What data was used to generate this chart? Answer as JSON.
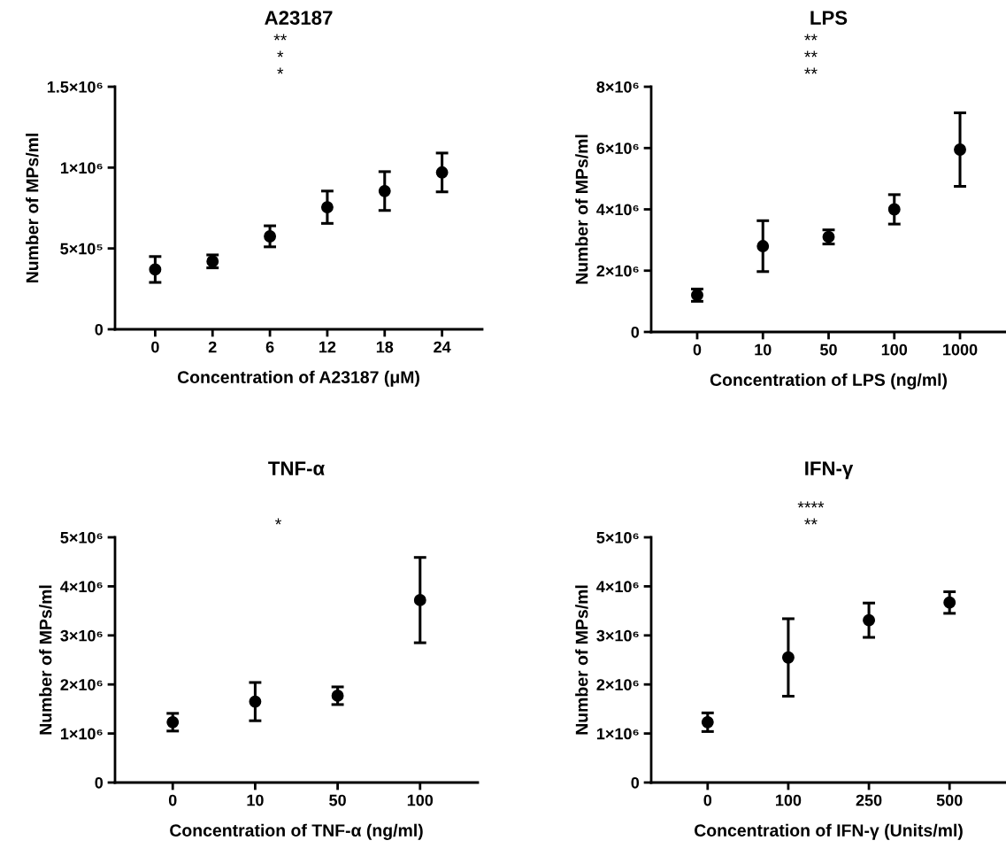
{
  "chart_data": [
    {
      "type": "scatter",
      "title": "A23187",
      "xlabel": "Concentration of A23187 (μM)",
      "ylabel": "Number of MPs/ml",
      "categories": [
        "0",
        "2",
        "6",
        "12",
        "18",
        "24"
      ],
      "series": [
        {
          "color": "#000000",
          "values": [
            370000,
            420000,
            575000,
            755000,
            855000,
            970000
          ],
          "errors": [
            80000,
            40000,
            65000,
            100000,
            120000,
            120000
          ]
        }
      ],
      "ylim": [
        0,
        1500000
      ],
      "yticks": [
        0,
        {
          "value": 500000,
          "label": "5×10⁵"
        },
        {
          "value": 1000000,
          "label": "1×10⁶"
        },
        {
          "value": 1500000,
          "label": "1.5×10⁶"
        }
      ],
      "marker": "circle",
      "grid": false,
      "legend": false,
      "annotations": [
        "*",
        "*",
        "**"
      ]
    },
    {
      "type": "scatter",
      "title": "LPS",
      "xlabel": "Concentration of LPS (ng/ml)",
      "ylabel": "Number of MPs/ml",
      "categories": [
        "0",
        "10",
        "50",
        "100",
        "1000"
      ],
      "series": [
        {
          "color": "#000000",
          "values": [
            1200000,
            2800000,
            3100000,
            4000000,
            5950000
          ],
          "errors": [
            200000,
            830000,
            230000,
            480000,
            1200000
          ]
        }
      ],
      "ylim": [
        0,
        8000000
      ],
      "yticks": [
        0,
        {
          "value": 2000000,
          "label": "2×10⁶"
        },
        {
          "value": 4000000,
          "label": "4×10⁶"
        },
        {
          "value": 6000000,
          "label": "6×10⁶"
        },
        {
          "value": 8000000,
          "label": "8×10⁶"
        }
      ],
      "marker": "circle",
      "grid": false,
      "legend": false,
      "annotations": [
        "**",
        "**",
        "**"
      ]
    },
    {
      "type": "scatter",
      "title": "TNF-α",
      "xlabel": "Concentration of TNF-α (ng/ml)",
      "ylabel": "Number of MPs/ml",
      "categories": [
        "0",
        "10",
        "50",
        "100"
      ],
      "series": [
        {
          "color": "#000000",
          "values": [
            1230000,
            1650000,
            1770000,
            3720000
          ],
          "errors": [
            180000,
            390000,
            180000,
            870000
          ]
        }
      ],
      "ylim": [
        0,
        5000000
      ],
      "yticks": [
        0,
        {
          "value": 1000000,
          "label": "1×10⁶"
        },
        {
          "value": 2000000,
          "label": "2×10⁶"
        },
        {
          "value": 3000000,
          "label": "3×10⁶"
        },
        {
          "value": 4000000,
          "label": "4×10⁶"
        },
        {
          "value": 5000000,
          "label": "5×10⁶"
        }
      ],
      "marker": "circle",
      "grid": false,
      "legend": false,
      "annotations": [
        "*"
      ]
    },
    {
      "type": "scatter",
      "title": "IFN-γ",
      "xlabel": "Concentration of IFN-γ (Units/ml)",
      "ylabel": "Number of MPs/ml",
      "categories": [
        "0",
        "100",
        "250",
        "500"
      ],
      "series": [
        {
          "color": "#000000",
          "values": [
            1230000,
            2550000,
            3310000,
            3670000
          ],
          "errors": [
            190000,
            790000,
            350000,
            220000
          ]
        }
      ],
      "ylim": [
        0,
        5000000
      ],
      "yticks": [
        0,
        {
          "value": 1000000,
          "label": "1×10⁶"
        },
        {
          "value": 2000000,
          "label": "2×10⁶"
        },
        {
          "value": 3000000,
          "label": "3×10⁶"
        },
        {
          "value": 4000000,
          "label": "4×10⁶"
        },
        {
          "value": 5000000,
          "label": "5×10⁶"
        }
      ],
      "marker": "circle",
      "grid": false,
      "legend": false,
      "annotations": [
        "**",
        "****"
      ]
    }
  ]
}
